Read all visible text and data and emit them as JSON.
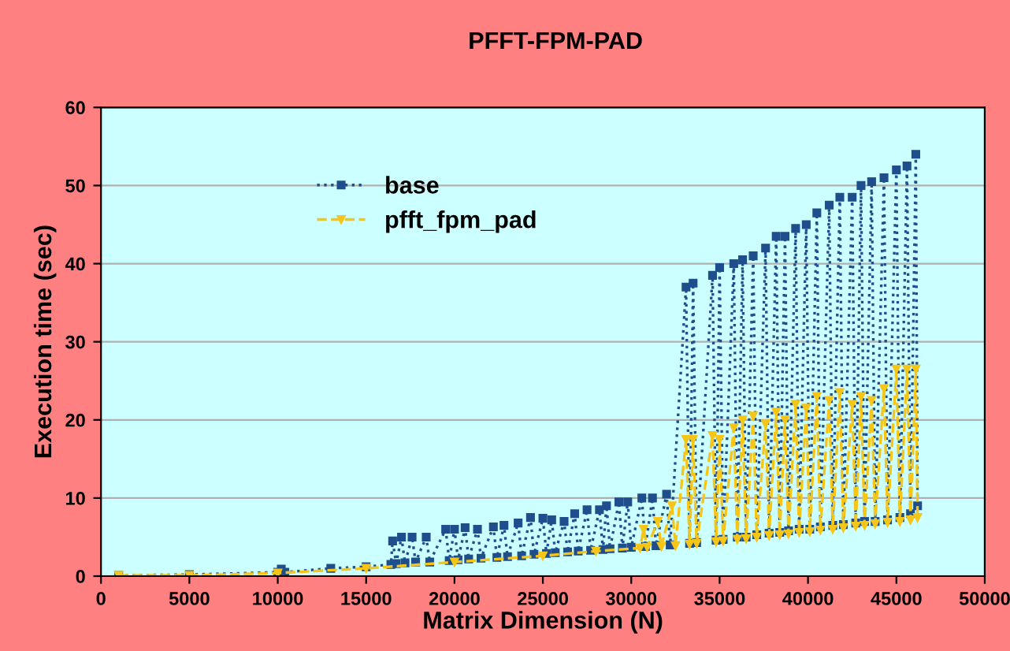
{
  "chart_data": {
    "type": "line",
    "title": "PFFT-FPM-PAD",
    "xlabel": "Matrix Dimension (N)",
    "ylabel": "Execution time (sec)",
    "xlim": [
      0,
      50000
    ],
    "xticks": [
      0,
      5000,
      10000,
      15000,
      20000,
      25000,
      30000,
      35000,
      40000,
      45000,
      50000
    ],
    "ylim": [
      0,
      60
    ],
    "yticks": [
      0,
      10,
      20,
      30,
      40,
      50,
      60
    ],
    "grid": "y",
    "legend": "top left",
    "series": [
      {
        "name": "base",
        "color": "#1f4e8c",
        "marker": "square",
        "line_style": "dotted",
        "x": [
          1000,
          5000,
          10000,
          10200,
          10400,
          13000,
          15000,
          16400,
          16500,
          16700,
          17000,
          17200,
          17600,
          17800,
          18400,
          18600,
          19500,
          19700,
          20000,
          20200,
          20600,
          20800,
          21300,
          21500,
          22200,
          22400,
          22800,
          23000,
          23600,
          23800,
          24300,
          24500,
          25000,
          25200,
          25500,
          25700,
          26200,
          26400,
          26800,
          27000,
          27500,
          27700,
          28200,
          28400,
          28600,
          28800,
          29300,
          29500,
          29800,
          30000,
          30600,
          30800,
          31200,
          31400,
          32000,
          32200,
          33100,
          33300,
          33500,
          33700,
          34600,
          34800,
          35000,
          35200,
          35800,
          36000,
          36300,
          36500,
          36900,
          37100,
          37600,
          37800,
          38200,
          38400,
          38700,
          38900,
          39300,
          39500,
          39900,
          40100,
          40500,
          40700,
          41200,
          41400,
          41800,
          42000,
          42500,
          42700,
          43000,
          43200,
          43600,
          43800,
          44300,
          44500,
          45000,
          45200,
          45600,
          45800,
          46100,
          46200
        ],
        "values": [
          0.1,
          0.2,
          0.5,
          0.9,
          0.5,
          1.0,
          1.2,
          1.5,
          4.5,
          1.6,
          5.0,
          1.7,
          5.0,
          1.8,
          5.0,
          1.8,
          6.0,
          2.0,
          6.0,
          2.1,
          6.2,
          2.2,
          6.0,
          2.3,
          6.3,
          2.4,
          6.5,
          2.5,
          6.8,
          2.6,
          7.5,
          2.8,
          7.4,
          2.9,
          7.2,
          3.0,
          7.0,
          3.1,
          8.0,
          3.2,
          8.5,
          3.3,
          8.5,
          3.4,
          9.0,
          3.5,
          9.5,
          3.6,
          9.5,
          3.7,
          10.0,
          3.8,
          10.0,
          3.9,
          10.5,
          4.0,
          37.0,
          4.2,
          37.5,
          4.3,
          38.5,
          4.6,
          39.5,
          4.7,
          40.0,
          5.0,
          40.5,
          5.0,
          41.0,
          5.3,
          42.0,
          5.5,
          43.5,
          5.6,
          43.5,
          5.8,
          44.5,
          6.0,
          45.0,
          6.0,
          46.5,
          6.3,
          47.5,
          6.5,
          48.5,
          6.6,
          48.5,
          6.8,
          50.0,
          7.0,
          50.5,
          7.0,
          51.0,
          7.2,
          52.0,
          7.5,
          52.5,
          8.0,
          54.0,
          9.0
        ]
      },
      {
        "name": "pfft_fpm_pad",
        "color": "#f5c518",
        "marker": "triangle",
        "line_style": "dashed",
        "x": [
          1000,
          5000,
          10000,
          15000,
          20000,
          25000,
          28000,
          30500,
          30700,
          30900,
          31500,
          31700,
          32300,
          32500,
          33100,
          33300,
          33500,
          33700,
          34600,
          34800,
          35000,
          35200,
          35800,
          36000,
          36300,
          36500,
          36900,
          37100,
          37600,
          37800,
          38200,
          38400,
          38700,
          38900,
          39300,
          39500,
          39900,
          40100,
          40500,
          40700,
          41200,
          41400,
          41800,
          42000,
          42500,
          42700,
          43000,
          43200,
          43600,
          43800,
          44300,
          44500,
          45000,
          45200,
          45600,
          45800,
          46100,
          46200
        ],
        "values": [
          0.1,
          0.1,
          0.4,
          1.0,
          1.8,
          2.6,
          3.2,
          3.6,
          6.0,
          3.7,
          7.0,
          3.8,
          9.0,
          3.9,
          17.5,
          4.1,
          17.5,
          4.2,
          18.0,
          4.4,
          17.5,
          4.5,
          19.0,
          4.7,
          20.0,
          4.8,
          20.5,
          5.0,
          19.5,
          5.2,
          21.0,
          5.3,
          20.0,
          5.4,
          22.0,
          5.6,
          21.5,
          5.7,
          23.0,
          5.9,
          22.5,
          6.0,
          23.5,
          6.2,
          22.0,
          6.4,
          23.0,
          6.5,
          22.5,
          6.7,
          24.0,
          6.9,
          26.5,
          7.0,
          26.5,
          7.2,
          26.5,
          7.5
        ]
      }
    ]
  }
}
